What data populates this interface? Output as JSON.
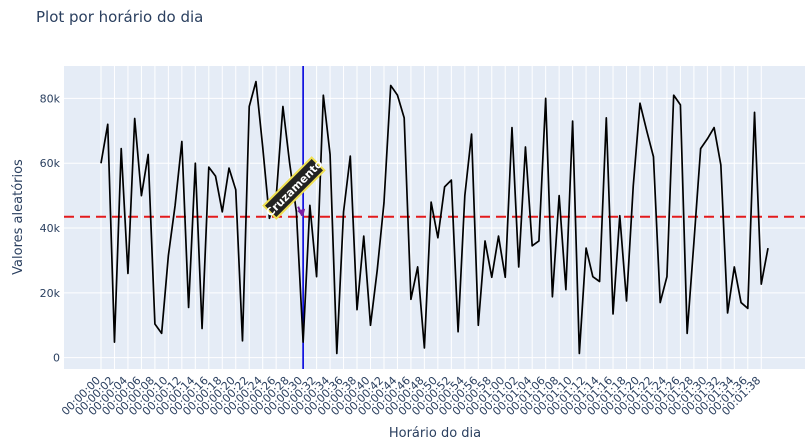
{
  "chart_data": {
    "type": "line",
    "title": "Plot por horário do dia",
    "xlabel": "Horário do dia",
    "ylabel": "Valores aleatórios",
    "x_start": "00:00:00",
    "x_interval_seconds": 1,
    "x_tick_labels": [
      "00:00:00",
      "00:00:02",
      "00:00:04",
      "00:00:06",
      "00:00:08",
      "00:00:10",
      "00:00:12",
      "00:00:14",
      "00:00:16",
      "00:00:18",
      "00:00:20",
      "00:00:22",
      "00:00:24",
      "00:00:26",
      "00:00:28",
      "00:00:30",
      "00:00:32",
      "00:00:34",
      "00:00:36",
      "00:00:38",
      "00:00:40",
      "00:00:42",
      "00:00:44",
      "00:00:46",
      "00:00:48",
      "00:00:50",
      "00:00:52",
      "00:00:54",
      "00:00:56",
      "00:00:58",
      "00:01:00",
      "00:01:02",
      "00:01:04",
      "00:01:06",
      "00:01:08",
      "00:01:10",
      "00:01:12",
      "00:01:14",
      "00:01:16",
      "00:01:18",
      "00:01:20",
      "00:01:22",
      "00:01:24",
      "00:01:26",
      "00:01:28",
      "00:01:30",
      "00:01:32",
      "00:01:34",
      "00:01:36",
      "00:01:38"
    ],
    "y_ticks": [
      0,
      20000,
      40000,
      60000,
      80000
    ],
    "y_tick_labels": [
      "0",
      "20k",
      "40k",
      "60k",
      "80k"
    ],
    "ylim": [
      -3500,
      90000
    ],
    "series": [
      {
        "color": "#000000",
        "values": [
          60000,
          72000,
          4800,
          64500,
          26000,
          73800,
          50000,
          62700,
          10400,
          7500,
          31500,
          47000,
          66700,
          15500,
          60000,
          9000,
          58800,
          56000,
          45000,
          58500,
          51800,
          5200,
          77500,
          85200,
          65000,
          43000,
          49500,
          77500,
          60000,
          45000,
          4800,
          47000,
          25000,
          81000,
          62700,
          1300,
          45000,
          62200,
          14800,
          37500,
          10000,
          27000,
          47800,
          84000,
          81000,
          74000,
          18000,
          28000,
          3000,
          48000,
          37000,
          52700,
          54800,
          8000,
          50000,
          69000,
          10000,
          36000,
          24800,
          37500,
          24800,
          71000,
          28000,
          65000,
          34500,
          36000,
          80000,
          18800,
          50000,
          21000,
          73000,
          1300,
          33800,
          25000,
          23500,
          74000,
          13500,
          43800,
          17500,
          53000,
          78500,
          70000,
          62000,
          17000,
          25000,
          81000,
          78000,
          7500,
          35500,
          64500,
          67500,
          71000,
          59500,
          13800,
          28000,
          17000,
          15200,
          75700,
          22700,
          33800
        ]
      }
    ],
    "horizontal_line": {
      "value": 43500,
      "color": "#e31a1c",
      "style": "dashed"
    },
    "vertical_line": {
      "x": "00:00:30",
      "color": "#0000dd"
    },
    "annotation": {
      "text": "Cruzamento",
      "x": "00:00:30",
      "y": 43500,
      "arrow_color": "#7b1fa2"
    },
    "grid": true,
    "colors": {
      "plot_bg": "#e5ecf6",
      "grid": "#ffffff",
      "text": "#2a3f5f"
    }
  }
}
